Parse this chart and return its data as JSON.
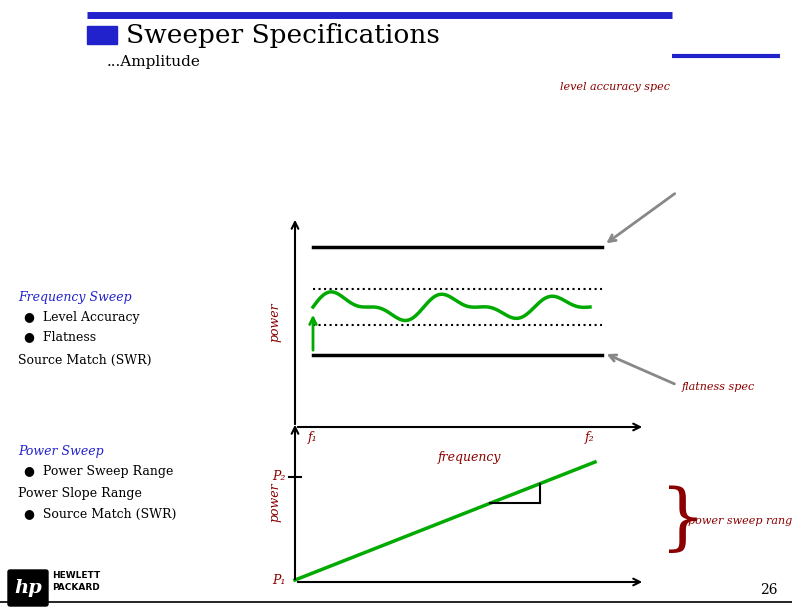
{
  "title": "Sweeper Specifications",
  "subtitle": "...Amplitude",
  "bg_color": "#ffffff",
  "title_color": "#000000",
  "blue_accent": "#2222cc",
  "dark_red": "#8b0000",
  "green_line": "#00aa00",
  "gray_arrow": "#888888",
  "slide_number": "26",
  "freq_sweep_label": "Frequency Sweep",
  "freq_items": [
    "Level Accuracy",
    "Flatness"
  ],
  "freq_extra": "Source Match (SWR)",
  "power_sweep_label": "Power Sweep",
  "power_items": [
    "Power Sweep Range"
  ],
  "power_extra1": "Power Slope Range",
  "power_extra2": "Source Match (SWR)",
  "annotation_level_acc": "level accuracy spec",
  "annotation_flatness": "flatness spec",
  "annotation_power_range": "power sweep range",
  "freq_xlabel": "frequency",
  "freq_f1": "f₁",
  "freq_f2": "f₂",
  "power_p1": "P₁",
  "power_p2": "P₂",
  "power_ylabel": "power",
  "freq_ylabel": "power"
}
